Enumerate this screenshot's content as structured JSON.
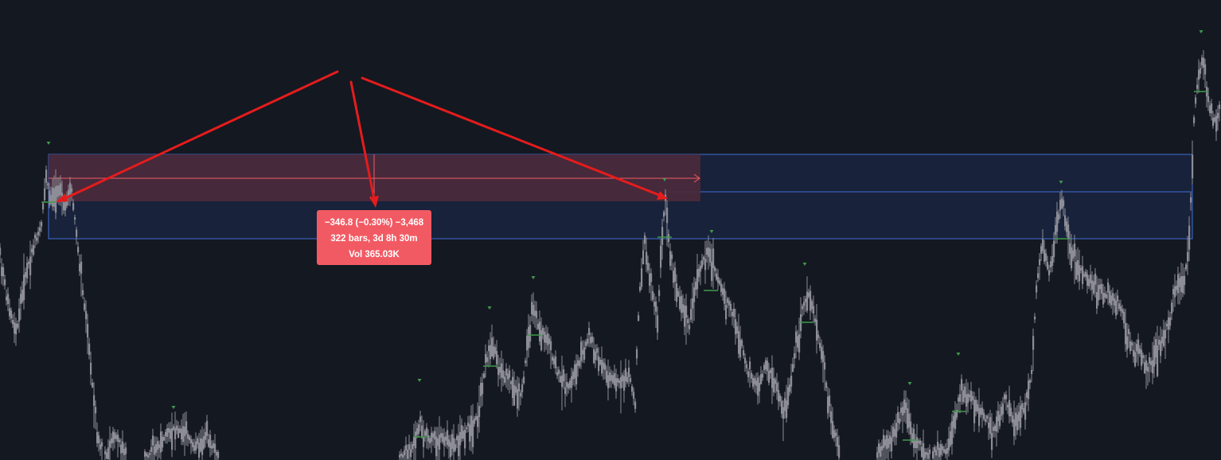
{
  "colors": {
    "background": "#141821",
    "candle": "#8c8d96",
    "zone_blue_fill": "#18223a",
    "zone_blue_border": "#3f6fd6",
    "measure_fill": "#4b2a3c",
    "measure_line": "#f25a63",
    "tooltip_bg": "#f25a63",
    "annotation_arrow": "#e51c1c",
    "pivot_marker": "#3f9a4a"
  },
  "measure_tooltip": {
    "line1": "−346.8 (−0.30%) −3,468",
    "line2": "322 bars, 3d 8h 30m",
    "line3": "Vol 365.03K"
  }
}
